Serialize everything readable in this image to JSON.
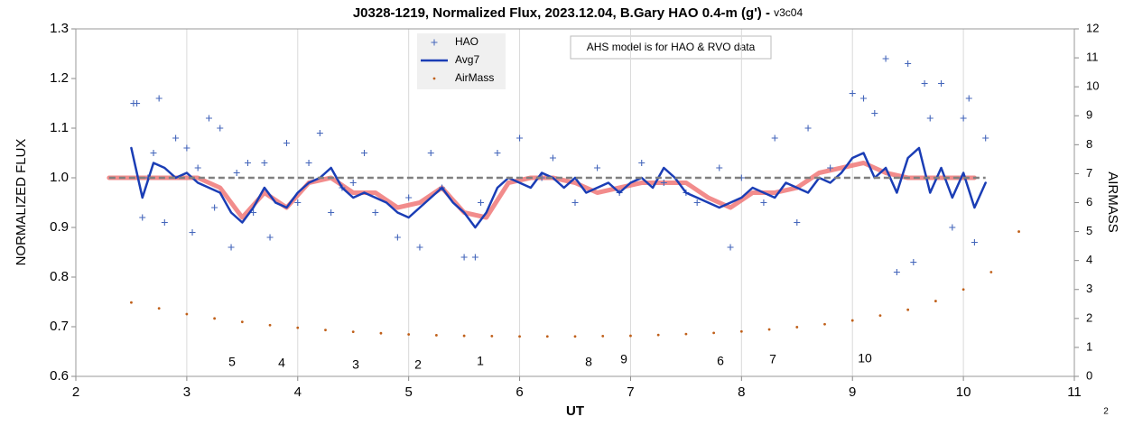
{
  "chart_data": {
    "type": "line",
    "title": "J0328-1219, Normalized Flux, 2023.12.04, B.Gary HAO 0.4-m (g') - ",
    "title_suffix": "v3c04",
    "x_label": "UT",
    "y_label": "NORMALIZED FLUX",
    "y2_label": "AIRMASS",
    "note": "AHS model is for HAO & RVO data",
    "annotations": [
      "5",
      "4",
      "3",
      "2",
      "1",
      "8",
      "9",
      "6",
      "7",
      "10"
    ],
    "corner_label": "2",
    "xlim": [
      2,
      11
    ],
    "xticks": [
      2,
      3,
      4,
      5,
      6,
      7,
      8,
      9,
      10,
      11
    ],
    "ylim": [
      0.6,
      1.3
    ],
    "yticks": [
      0.6,
      0.7,
      0.8,
      0.9,
      {
        "value": 1,
        "label": "1.0"
      },
      1.1,
      1.2,
      1.3
    ],
    "y2lim": [
      0,
      12
    ],
    "y2ticks": [
      0,
      1,
      2,
      3,
      4,
      5,
      6,
      7,
      8,
      9,
      10,
      11,
      12
    ],
    "grid": "x",
    "legend": "top",
    "series": [
      {
        "name": "HAO",
        "type": "scatter",
        "marker": "plus",
        "color": "#4466bb",
        "x": [
          2.52,
          2.55,
          2.6,
          2.65,
          2.7,
          2.75,
          2.8,
          2.9,
          3.0,
          3.05,
          3.1,
          3.2,
          3.25,
          3.3,
          3.4,
          3.45,
          3.55,
          3.6,
          3.7,
          3.75,
          3.9,
          4.0,
          4.1,
          4.2,
          4.3,
          4.4,
          4.5,
          4.6,
          4.7,
          4.9,
          5.0,
          5.1,
          5.2,
          5.3,
          5.5,
          5.6,
          5.65,
          5.8,
          6.0,
          6.2,
          6.3,
          6.5,
          6.7,
          6.9,
          7.1,
          7.3,
          7.5,
          7.6,
          7.8,
          7.9,
          8.0,
          8.2,
          8.3,
          8.5,
          8.6,
          8.8,
          9.0,
          9.1,
          9.2,
          9.3,
          9.4,
          9.5,
          9.55,
          9.65,
          9.7,
          9.8,
          9.9,
          10.0,
          10.05,
          10.1,
          10.2
        ],
        "values": [
          1.15,
          1.15,
          0.92,
          1.0,
          1.05,
          1.16,
          0.91,
          1.08,
          1.06,
          0.89,
          1.02,
          1.12,
          0.94,
          1.1,
          0.86,
          1.01,
          1.03,
          0.93,
          1.03,
          0.88,
          1.07,
          0.95,
          1.03,
          1.09,
          0.93,
          0.98,
          0.99,
          1.05,
          0.93,
          0.88,
          0.96,
          0.86,
          1.05,
          0.98,
          0.84,
          0.84,
          0.95,
          1.05,
          1.08,
          1.0,
          1.04,
          0.95,
          1.02,
          0.97,
          1.03,
          0.99,
          0.97,
          0.95,
          1.02,
          0.86,
          1.0,
          0.95,
          1.08,
          0.91,
          1.1,
          1.02,
          1.17,
          1.16,
          1.13,
          1.24,
          0.81,
          1.23,
          0.83,
          1.19,
          1.12,
          1.19,
          0.9,
          1.12,
          1.16,
          0.87,
          1.08
        ]
      },
      {
        "name": "Avg7",
        "type": "line",
        "width": 2.5,
        "color": "#1a3db5",
        "x": [
          2.5,
          2.6,
          2.7,
          2.8,
          2.9,
          3.0,
          3.1,
          3.2,
          3.3,
          3.4,
          3.5,
          3.6,
          3.7,
          3.8,
          3.9,
          4.0,
          4.1,
          4.2,
          4.3,
          4.4,
          4.5,
          4.6,
          4.7,
          4.8,
          4.9,
          5.0,
          5.1,
          5.2,
          5.3,
          5.4,
          5.5,
          5.6,
          5.7,
          5.8,
          5.9,
          6.0,
          6.1,
          6.2,
          6.3,
          6.4,
          6.5,
          6.6,
          6.7,
          6.8,
          6.9,
          7.0,
          7.1,
          7.2,
          7.3,
          7.4,
          7.5,
          7.6,
          7.7,
          7.8,
          7.9,
          8.0,
          8.1,
          8.2,
          8.3,
          8.4,
          8.5,
          8.6,
          8.7,
          8.8,
          8.9,
          9.0,
          9.1,
          9.2,
          9.3,
          9.4,
          9.5,
          9.6,
          9.7,
          9.8,
          9.9,
          10.0,
          10.1,
          10.2
        ],
        "values": [
          1.06,
          0.96,
          1.03,
          1.02,
          1.0,
          1.01,
          0.99,
          0.98,
          0.97,
          0.93,
          0.91,
          0.94,
          0.98,
          0.95,
          0.94,
          0.97,
          0.99,
          1.0,
          1.02,
          0.98,
          0.96,
          0.97,
          0.96,
          0.95,
          0.93,
          0.92,
          0.94,
          0.96,
          0.98,
          0.95,
          0.93,
          0.9,
          0.93,
          0.98,
          1.0,
          0.99,
          0.98,
          1.01,
          1.0,
          0.98,
          1.0,
          0.97,
          0.98,
          0.99,
          0.97,
          0.99,
          1.0,
          0.98,
          1.02,
          1.0,
          0.97,
          0.96,
          0.95,
          0.94,
          0.95,
          0.96,
          0.98,
          0.97,
          0.96,
          0.99,
          0.98,
          0.97,
          1.0,
          0.99,
          1.01,
          1.04,
          1.05,
          1.0,
          1.02,
          0.97,
          1.04,
          1.06,
          0.97,
          1.02,
          0.96,
          1.01,
          0.94,
          0.99
        ]
      },
      {
        "name": "AirMass",
        "type": "scatter",
        "marker": "dot",
        "axis": "y2",
        "color": "#c0601a",
        "x": [
          2.5,
          2.75,
          3.0,
          3.25,
          3.5,
          3.75,
          4.0,
          4.25,
          4.5,
          4.75,
          5.0,
          5.25,
          5.5,
          5.75,
          6.0,
          6.25,
          6.5,
          6.75,
          7.0,
          7.25,
          7.5,
          7.75,
          8.0,
          8.25,
          8.5,
          8.75,
          9.0,
          9.25,
          9.5,
          9.75,
          10.0,
          10.25,
          10.5
        ],
        "values": [
          2.55,
          2.35,
          2.15,
          2.0,
          1.88,
          1.77,
          1.68,
          1.6,
          1.54,
          1.49,
          1.45,
          1.42,
          1.4,
          1.39,
          1.38,
          1.38,
          1.38,
          1.39,
          1.4,
          1.43,
          1.46,
          1.5,
          1.55,
          1.62,
          1.7,
          1.8,
          1.93,
          2.1,
          2.3,
          2.6,
          3.0,
          3.6,
          5.0
        ]
      },
      {
        "type": "line",
        "width": 5,
        "color": "#f07878",
        "x": [
          2.3,
          2.5,
          2.7,
          2.9,
          3.1,
          3.3,
          3.5,
          3.7,
          3.9,
          4.1,
          4.3,
          4.5,
          4.7,
          4.9,
          5.1,
          5.3,
          5.5,
          5.7,
          5.9,
          6.1,
          6.3,
          6.5,
          6.7,
          6.9,
          7.1,
          7.3,
          7.5,
          7.7,
          7.9,
          8.1,
          8.3,
          8.5,
          8.7,
          8.9,
          9.1,
          9.3,
          9.5,
          9.7,
          9.9,
          10.1
        ],
        "values": [
          1.0,
          1.0,
          1.0,
          1.0,
          1.0,
          0.98,
          0.92,
          0.97,
          0.94,
          0.99,
          1.0,
          0.97,
          0.97,
          0.94,
          0.95,
          0.98,
          0.93,
          0.92,
          0.99,
          1.0,
          1.0,
          0.99,
          0.97,
          0.98,
          0.99,
          0.99,
          0.99,
          0.96,
          0.94,
          0.97,
          0.97,
          0.98,
          1.01,
          1.02,
          1.03,
          1.01,
          1.0,
          1.0,
          1.0,
          1.0
        ]
      },
      {
        "type": "line",
        "width": 2.5,
        "dash": true,
        "color": "#808080",
        "x": [
          2.3,
          10.2
        ],
        "values": [
          1,
          1
        ]
      }
    ]
  }
}
